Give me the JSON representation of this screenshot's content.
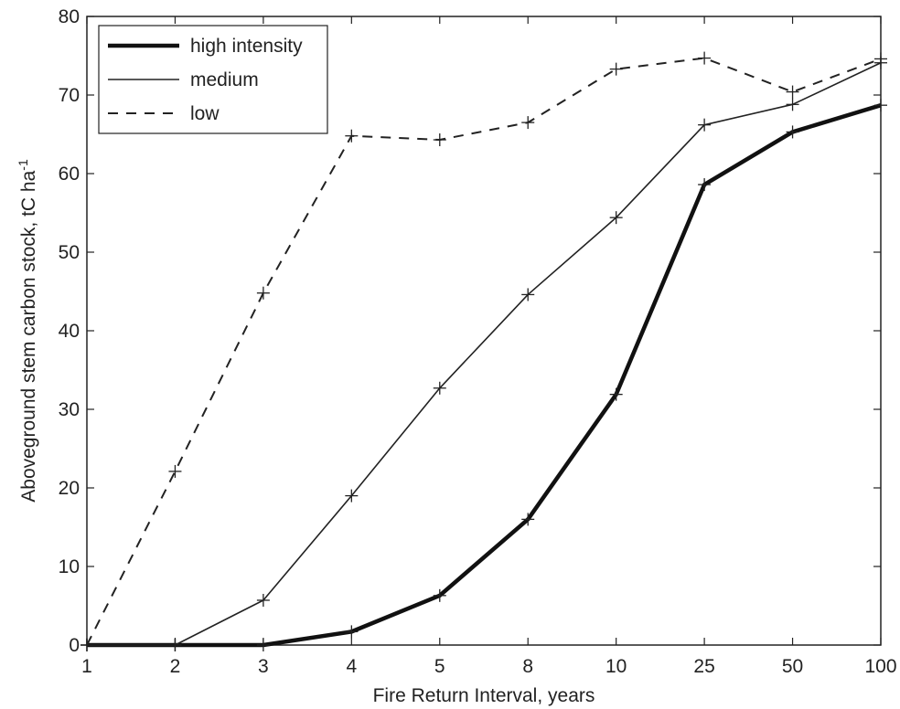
{
  "chart_data": {
    "type": "line",
    "categories": [
      "1",
      "2",
      "3",
      "4",
      "5",
      "8",
      "10",
      "25",
      "50",
      "100"
    ],
    "series": [
      {
        "name": "high intensity",
        "style": "thick-solid",
        "color": "#111111",
        "values": [
          0,
          0,
          0,
          1.7,
          6.3,
          16,
          31.9,
          58.6,
          65.3,
          68.7
        ]
      },
      {
        "name": "medium",
        "style": "thin-solid",
        "color": "#222222",
        "values": [
          0,
          0,
          5.7,
          19,
          32.7,
          44.6,
          54.4,
          66.2,
          68.8,
          74.1
        ]
      },
      {
        "name": "low",
        "style": "dashed",
        "color": "#222222",
        "values": [
          0,
          22.1,
          44.8,
          64.8,
          64.3,
          66.5,
          73.3,
          74.7,
          70.4,
          74.6
        ]
      }
    ],
    "yticks": [
      "0",
      "10",
      "20",
      "30",
      "40",
      "50",
      "60",
      "70",
      "80"
    ],
    "ylim": [
      0,
      80
    ],
    "xlabel": "Fire Return Interval, years",
    "ylabel": "Aboveground stem carbon stock, tC ha",
    "ylabel_superscript": "-1",
    "legend_position": "top-left",
    "grid": false
  }
}
